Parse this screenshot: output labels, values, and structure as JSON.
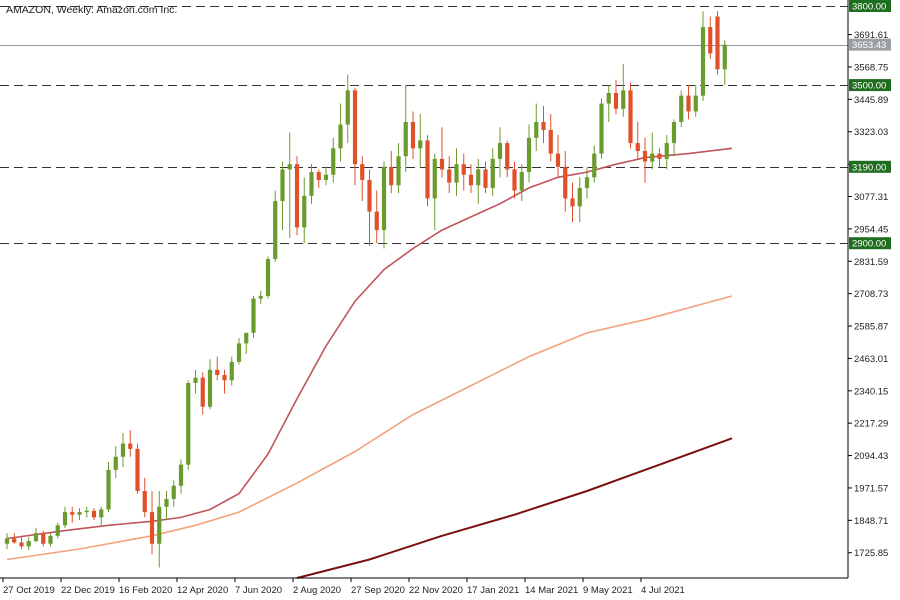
{
  "chart_data": {
    "type": "candlestick",
    "title": "AMAZON, Weekly:  Amazon.com Inc.",
    "colors": {
      "bull": "#6b9b2e",
      "bear": "#e0502a",
      "ma_fast": "#c0545a",
      "ma_mid": "#f4a27c",
      "ma_slow": "#7a1010",
      "level_label_bg": "#1f6d1f",
      "current_label_bg": "#9a9fa4",
      "grid_dashed": "#333333"
    },
    "y_ticks": [
      "3691.61",
      "3568.75",
      "3445.89",
      "3323.03",
      "3200.17",
      "3077.31",
      "2954.45",
      "2831.59",
      "2708.73",
      "2585.87",
      "2463.01",
      "2340.15",
      "2217.29",
      "2094.43",
      "1971.57",
      "1848.71",
      "1725.85"
    ],
    "x_ticks": [
      {
        "label": "27 Oct 2019",
        "week": 0
      },
      {
        "label": "22 Dec 2019",
        "week": 8
      },
      {
        "label": "16 Feb 2020",
        "week": 16
      },
      {
        "label": "12 Apr 2020",
        "week": 24
      },
      {
        "label": "7 Jun 2020",
        "week": 32
      },
      {
        "label": "2 Aug 2020",
        "week": 40
      },
      {
        "label": "27 Sep 2020",
        "week": 48
      },
      {
        "label": "22 Nov 2020",
        "week": 56
      },
      {
        "label": "17 Jan 2021",
        "week": 64
      },
      {
        "label": "14 Mar 2021",
        "week": 72
      },
      {
        "label": "9 May 2021",
        "week": 80
      },
      {
        "label": "4 Jul 2021",
        "week": 88
      }
    ],
    "levels": [
      {
        "value": 3800,
        "label": "3800.00"
      },
      {
        "value": 3500,
        "label": "3500.00"
      },
      {
        "value": 3190,
        "label": "3190.00"
      },
      {
        "value": 2900,
        "label": "2900.00"
      }
    ],
    "current_price": {
      "value": 3653.43,
      "label": "3653.43"
    },
    "candles": [
      [
        1760,
        1800,
        1740,
        1780
      ],
      [
        1780,
        1800,
        1760,
        1765
      ],
      [
        1765,
        1790,
        1740,
        1750
      ],
      [
        1750,
        1785,
        1735,
        1770
      ],
      [
        1770,
        1820,
        1765,
        1800
      ],
      [
        1800,
        1810,
        1750,
        1760
      ],
      [
        1760,
        1800,
        1750,
        1790
      ],
      [
        1790,
        1840,
        1780,
        1830
      ],
      [
        1830,
        1900,
        1820,
        1880
      ],
      [
        1880,
        1900,
        1840,
        1870
      ],
      [
        1870,
        1895,
        1850,
        1880
      ],
      [
        1880,
        1900,
        1860,
        1885
      ],
      [
        1885,
        1895,
        1850,
        1860
      ],
      [
        1860,
        1900,
        1830,
        1890
      ],
      [
        1890,
        2070,
        1880,
        2040
      ],
      [
        2040,
        2130,
        2010,
        2090
      ],
      [
        2090,
        2180,
        2050,
        2140
      ],
      [
        2140,
        2190,
        2090,
        2120
      ],
      [
        2120,
        2140,
        1950,
        1960
      ],
      [
        1960,
        2010,
        1860,
        1880
      ],
      [
        1880,
        1960,
        1720,
        1760
      ],
      [
        1760,
        1960,
        1670,
        1900
      ],
      [
        1900,
        1960,
        1850,
        1930
      ],
      [
        1930,
        2000,
        1900,
        1980
      ],
      [
        1980,
        2080,
        1950,
        2060
      ],
      [
        2060,
        2380,
        2040,
        2370
      ],
      [
        2370,
        2420,
        2330,
        2390
      ],
      [
        2390,
        2410,
        2250,
        2280
      ],
      [
        2280,
        2460,
        2270,
        2420
      ],
      [
        2420,
        2470,
        2380,
        2400
      ],
      [
        2400,
        2420,
        2330,
        2380
      ],
      [
        2380,
        2470,
        2360,
        2450
      ],
      [
        2450,
        2540,
        2440,
        2520
      ],
      [
        2520,
        2560,
        2480,
        2560
      ],
      [
        2560,
        2700,
        2540,
        2690
      ],
      [
        2690,
        2720,
        2670,
        2700
      ],
      [
        2700,
        2850,
        2690,
        2840
      ],
      [
        2840,
        3100,
        2830,
        3060
      ],
      [
        3060,
        3210,
        2950,
        3180
      ],
      [
        3180,
        3320,
        2920,
        3200
      ],
      [
        3200,
        3230,
        2930,
        2960
      ],
      [
        2960,
        3150,
        2900,
        3080
      ],
      [
        3080,
        3200,
        3050,
        3170
      ],
      [
        3170,
        3180,
        3110,
        3140
      ],
      [
        3140,
        3190,
        3120,
        3160
      ],
      [
        3160,
        3300,
        3130,
        3260
      ],
      [
        3260,
        3430,
        3210,
        3350
      ],
      [
        3350,
        3540,
        3280,
        3480
      ],
      [
        3480,
        3490,
        3120,
        3200
      ],
      [
        3200,
        3230,
        3060,
        3140
      ],
      [
        3140,
        3180,
        2890,
        3020
      ],
      [
        3020,
        3100,
        2900,
        2950
      ],
      [
        2950,
        3210,
        2880,
        3190
      ],
      [
        3190,
        3250,
        3090,
        3120
      ],
      [
        3120,
        3280,
        3090,
        3230
      ],
      [
        3230,
        3500,
        3170,
        3360
      ],
      [
        3360,
        3400,
        3220,
        3260
      ],
      [
        3260,
        3390,
        3190,
        3290
      ],
      [
        3290,
        3310,
        3040,
        3070
      ],
      [
        3070,
        3240,
        2950,
        3220
      ],
      [
        3220,
        3340,
        3150,
        3180
      ],
      [
        3180,
        3230,
        3090,
        3130
      ],
      [
        3130,
        3260,
        3080,
        3200
      ],
      [
        3200,
        3240,
        3100,
        3160
      ],
      [
        3160,
        3200,
        3090,
        3120
      ],
      [
        3120,
        3220,
        3050,
        3180
      ],
      [
        3180,
        3210,
        3090,
        3110
      ],
      [
        3110,
        3260,
        3080,
        3220
      ],
      [
        3220,
        3340,
        3150,
        3280
      ],
      [
        3280,
        3290,
        3150,
        3180
      ],
      [
        3180,
        3210,
        3070,
        3100
      ],
      [
        3100,
        3200,
        3060,
        3170
      ],
      [
        3170,
        3350,
        3130,
        3300
      ],
      [
        3300,
        3430,
        3250,
        3360
      ],
      [
        3360,
        3420,
        3280,
        3330
      ],
      [
        3330,
        3390,
        3210,
        3240
      ],
      [
        3240,
        3310,
        3150,
        3190
      ],
      [
        3190,
        3250,
        3020,
        3070
      ],
      [
        3070,
        3130,
        2980,
        3040
      ],
      [
        3040,
        3150,
        2980,
        3110
      ],
      [
        3110,
        3190,
        3070,
        3150
      ],
      [
        3150,
        3270,
        3130,
        3240
      ],
      [
        3240,
        3450,
        3220,
        3430
      ],
      [
        3430,
        3500,
        3360,
        3470
      ],
      [
        3470,
        3520,
        3390,
        3410
      ],
      [
        3410,
        3580,
        3380,
        3480
      ],
      [
        3480,
        3510,
        3260,
        3280
      ],
      [
        3280,
        3360,
        3220,
        3250
      ],
      [
        3250,
        3300,
        3130,
        3210
      ],
      [
        3210,
        3320,
        3180,
        3240
      ],
      [
        3240,
        3260,
        3190,
        3220
      ],
      [
        3220,
        3310,
        3180,
        3280
      ],
      [
        3280,
        3370,
        3230,
        3360
      ],
      [
        3360,
        3480,
        3340,
        3460
      ],
      [
        3460,
        3500,
        3370,
        3400
      ],
      [
        3400,
        3500,
        3380,
        3460
      ],
      [
        3460,
        3780,
        3440,
        3720
      ],
      [
        3720,
        3760,
        3600,
        3620
      ],
      [
        3760,
        3780,
        3540,
        3560
      ],
      [
        3560,
        3670,
        3500,
        3653.43
      ]
    ],
    "moving_averages": [
      {
        "key": "ma_fast",
        "points": [
          [
            0,
            1780
          ],
          [
            8,
            1810
          ],
          [
            14,
            1830
          ],
          [
            20,
            1845
          ],
          [
            24,
            1860
          ],
          [
            28,
            1890
          ],
          [
            32,
            1950
          ],
          [
            36,
            2100
          ],
          [
            40,
            2310
          ],
          [
            44,
            2510
          ],
          [
            48,
            2680
          ],
          [
            52,
            2800
          ],
          [
            56,
            2880
          ],
          [
            60,
            2950
          ],
          [
            64,
            3000
          ],
          [
            68,
            3050
          ],
          [
            72,
            3110
          ],
          [
            76,
            3150
          ],
          [
            80,
            3170
          ],
          [
            84,
            3200
          ],
          [
            88,
            3225
          ],
          [
            94,
            3240
          ],
          [
            100,
            3260
          ]
        ]
      },
      {
        "key": "ma_mid",
        "points": [
          [
            0,
            1700
          ],
          [
            10,
            1740
          ],
          [
            20,
            1790
          ],
          [
            26,
            1830
          ],
          [
            32,
            1880
          ],
          [
            40,
            1990
          ],
          [
            48,
            2110
          ],
          [
            56,
            2250
          ],
          [
            64,
            2360
          ],
          [
            72,
            2470
          ],
          [
            80,
            2560
          ],
          [
            88,
            2610
          ],
          [
            96,
            2670
          ],
          [
            100,
            2700
          ]
        ]
      },
      {
        "key": "ma_slow",
        "points": [
          [
            40,
            1590
          ],
          [
            50,
            1700
          ],
          [
            60,
            1790
          ],
          [
            70,
            1870
          ],
          [
            80,
            1960
          ],
          [
            90,
            2060
          ],
          [
            100,
            2160
          ]
        ]
      }
    ]
  }
}
